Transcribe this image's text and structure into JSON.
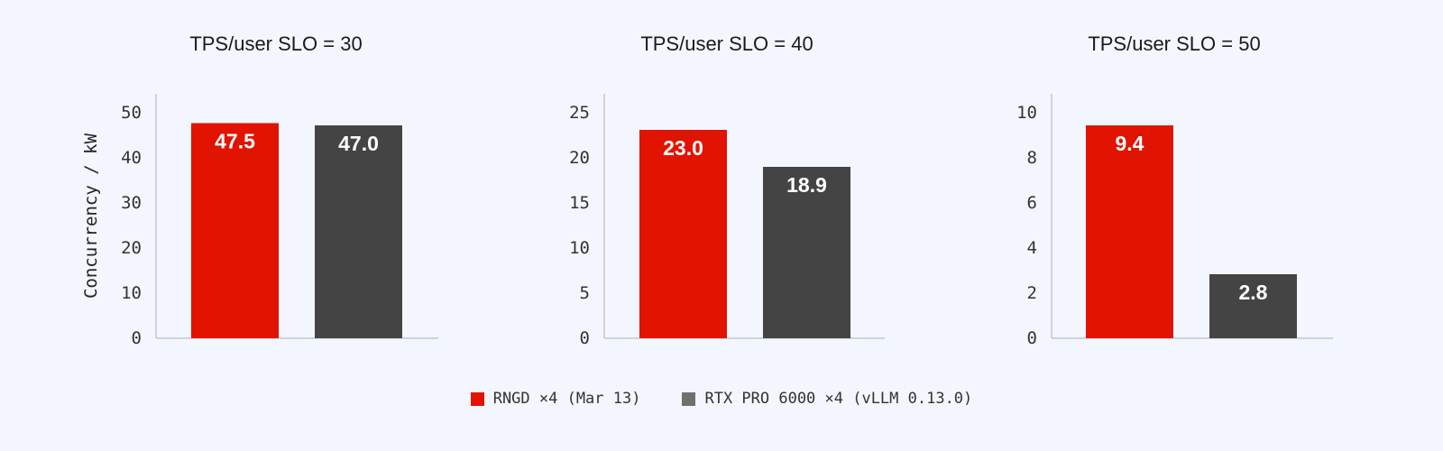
{
  "chart_data": [
    {
      "type": "bar",
      "title": "TPS/user SLO = 30",
      "ylabel": "Concurrency / kW",
      "ylim": [
        0,
        53
      ],
      "yticks": [
        "0",
        "10",
        "20",
        "30",
        "40",
        "50"
      ],
      "series": [
        {
          "name": "RNGD ×4 (Mar 13)",
          "value": 47.5,
          "label": "47.5"
        },
        {
          "name": "RTX PRO 6000 ×4 (vLLM 0.13.0)",
          "value": 47.0,
          "label": "47.0"
        }
      ]
    },
    {
      "type": "bar",
      "title": "TPS/user SLO = 40",
      "ylabel": "",
      "ylim": [
        0,
        26.5
      ],
      "yticks": [
        "0",
        "5",
        "10",
        "15",
        "20",
        "25"
      ],
      "series": [
        {
          "name": "RNGD ×4 (Mar 13)",
          "value": 23.0,
          "label": "23.0"
        },
        {
          "name": "RTX PRO 6000 ×4 (vLLM 0.13.0)",
          "value": 18.9,
          "label": "18.9"
        }
      ]
    },
    {
      "type": "bar",
      "title": "TPS/user SLO = 50",
      "ylabel": "",
      "ylim": [
        0,
        10.6
      ],
      "yticks": [
        "0",
        "2",
        "4",
        "6",
        "8",
        "10"
      ],
      "series": [
        {
          "name": "RNGD ×4 (Mar 13)",
          "value": 9.4,
          "label": "9.4"
        },
        {
          "name": "RTX PRO 6000 ×4 (vLLM 0.13.0)",
          "value": 2.8,
          "label": "2.8"
        }
      ]
    }
  ],
  "legend": {
    "position": "bottom-center",
    "items": [
      {
        "label": "RNGD ×4 (Mar 13)",
        "color": "#e01400"
      },
      {
        "label": "RTX PRO 6000 ×4 (vLLM 0.13.0)",
        "color": "#707070"
      }
    ]
  },
  "colors": {
    "series_bars": [
      "#e01400",
      "#444444"
    ],
    "background": "#f3f6fe",
    "axis": "#b9bcc4"
  },
  "grid": false
}
